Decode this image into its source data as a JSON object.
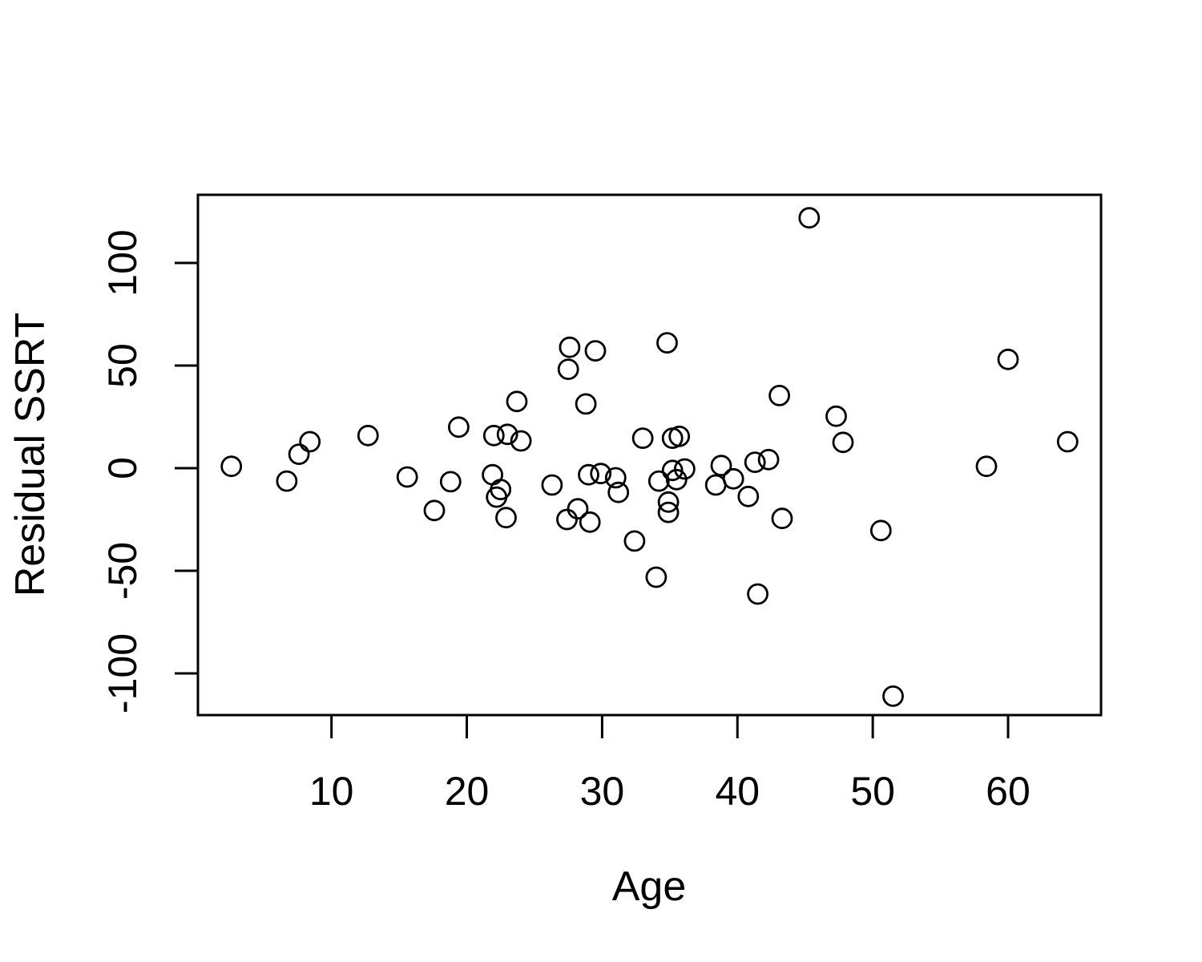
{
  "figure": {
    "background": "#ffffff",
    "foreground": "#000000"
  },
  "chart_data": {
    "type": "scatter",
    "title": "",
    "xlabel": "Age",
    "ylabel": "Residual SSRT",
    "xlim": [
      0.13,
      66.87
    ],
    "ylim": [
      -120.3,
      133.2
    ],
    "x_ticks": [
      10,
      20,
      30,
      40,
      50,
      60
    ],
    "y_ticks": [
      -100,
      -50,
      0,
      50,
      100
    ],
    "grid": false,
    "legend": null,
    "marker": "open-circle",
    "marker_color": "#000000",
    "points": [
      [
        2.6,
        0.9
      ],
      [
        6.7,
        -6.3
      ],
      [
        7.6,
        6.8
      ],
      [
        8.4,
        12.9
      ],
      [
        12.7,
        15.9
      ],
      [
        15.6,
        -4.3
      ],
      [
        17.6,
        -20.6
      ],
      [
        18.8,
        -6.6
      ],
      [
        19.4,
        20.0
      ],
      [
        21.9,
        -3.2
      ],
      [
        22.0,
        15.9
      ],
      [
        22.2,
        -14.1
      ],
      [
        22.5,
        -10.4
      ],
      [
        22.9,
        -24.1
      ],
      [
        23.0,
        16.5
      ],
      [
        23.7,
        32.5
      ],
      [
        24.0,
        13.3
      ],
      [
        26.3,
        -8.2
      ],
      [
        27.4,
        -25.0
      ],
      [
        27.5,
        48.2
      ],
      [
        27.6,
        58.9
      ],
      [
        28.2,
        -19.8
      ],
      [
        28.8,
        31.3
      ],
      [
        29.0,
        -3.2
      ],
      [
        29.1,
        -26.3
      ],
      [
        29.5,
        57.2
      ],
      [
        29.9,
        -2.6
      ],
      [
        31.0,
        -4.7
      ],
      [
        31.2,
        -11.8
      ],
      [
        32.4,
        -35.5
      ],
      [
        33.0,
        14.6
      ],
      [
        34.0,
        -53.1
      ],
      [
        34.2,
        -6.3
      ],
      [
        34.8,
        61.1
      ],
      [
        34.9,
        -21.5
      ],
      [
        34.9,
        -16.5
      ],
      [
        35.2,
        14.6
      ],
      [
        35.2,
        -1.1
      ],
      [
        35.5,
        -5.6
      ],
      [
        35.7,
        15.5
      ],
      [
        36.1,
        -0.4
      ],
      [
        38.4,
        -8.2
      ],
      [
        38.8,
        1.3
      ],
      [
        39.7,
        -5.2
      ],
      [
        40.8,
        -13.8
      ],
      [
        41.3,
        2.9
      ],
      [
        41.5,
        -61.3
      ],
      [
        42.3,
        4.2
      ],
      [
        43.1,
        35.4
      ],
      [
        43.3,
        -24.5
      ],
      [
        45.3,
        122.0
      ],
      [
        47.3,
        25.3
      ],
      [
        47.8,
        12.6
      ],
      [
        50.6,
        -30.4
      ],
      [
        51.5,
        -111.1
      ],
      [
        58.4,
        0.9
      ],
      [
        60.0,
        53.0
      ],
      [
        64.4,
        12.9
      ]
    ]
  }
}
